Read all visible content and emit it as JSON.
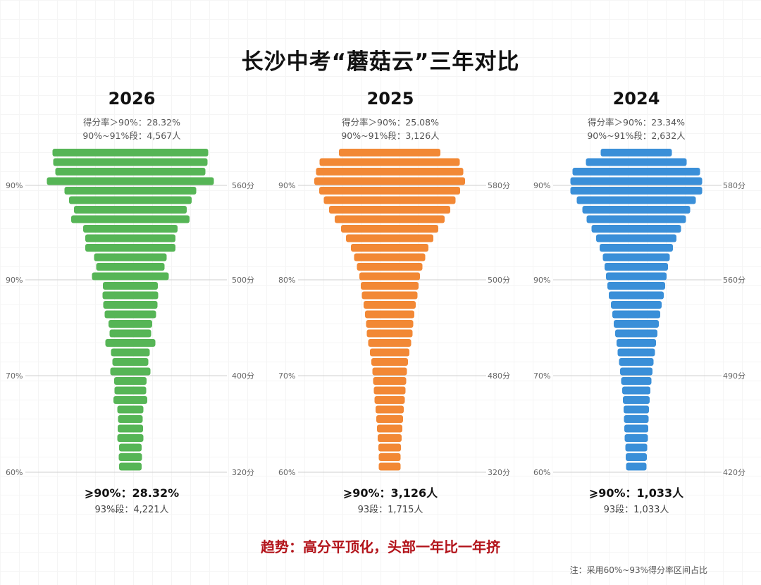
{
  "title": "长沙中考“蘑菇云”三年对比",
  "trend": "趋势：高分平顶化，头部一年比一年挤",
  "note": "注：采用60%~93%得分率区间占比",
  "panels": [
    {
      "year": "2026",
      "sub1": "得分率＞90%：28.32%",
      "sub2": "90%~91%段：4,567人",
      "bottom1": "⩾90%：28.32%",
      "bottom2": "93%段：4,221人"
    },
    {
      "year": "2025",
      "sub1": "得分率＞90%：25.08%",
      "sub2": "90%~91%段：3,126人",
      "bottom1": "⩾90%：3,126人",
      "bottom2": "93段：1,715人"
    },
    {
      "year": "2024",
      "sub1": "得分率＞90%：23.34%",
      "sub2": "90%~91%段：2,632人",
      "bottom1": "⩾90%：1,033人",
      "bottom2": "93段：1,033人"
    }
  ],
  "chart_data": [
    {
      "type": "bar",
      "orientation": "horizontal",
      "title": "2026",
      "color": "#56b556",
      "left_ticks": [
        "90%",
        "90%",
        "70%",
        "60%"
      ],
      "right_ticks": [
        "560分",
        "500分",
        "400分",
        "320分"
      ],
      "values": [
        221,
        219,
        213,
        237,
        187,
        174,
        160,
        168,
        134,
        128,
        128,
        103,
        97,
        109,
        78,
        79,
        77,
        73,
        62,
        59,
        71,
        55,
        51,
        57,
        46,
        45,
        48,
        37,
        35,
        36,
        37,
        32,
        33,
        32
      ]
    },
    {
      "type": "bar",
      "orientation": "horizontal",
      "title": "2025",
      "color": "#f28835",
      "left_ticks": [
        "90%",
        "80%",
        "70%",
        "60%"
      ],
      "right_ticks": [
        "580分",
        "500分",
        "480分",
        "320分"
      ],
      "values": [
        144,
        199,
        209,
        214,
        200,
        187,
        172,
        156,
        138,
        124,
        110,
        101,
        93,
        86,
        82,
        79,
        74,
        70,
        67,
        65,
        61,
        56,
        52,
        49,
        47,
        45,
        43,
        40,
        38,
        36,
        34,
        32,
        31,
        31
      ]
    },
    {
      "type": "bar",
      "orientation": "horizontal",
      "title": "2024",
      "color": "#3a8fd8",
      "left_ticks": [
        "90%",
        "90%",
        "70%",
        "60%"
      ],
      "right_ticks": [
        "580分",
        "560分",
        "490分",
        "420分"
      ],
      "values": [
        101,
        143,
        181,
        187,
        187,
        169,
        153,
        141,
        127,
        114,
        104,
        95,
        90,
        86,
        82,
        78,
        72,
        68,
        64,
        60,
        56,
        53,
        49,
        46,
        43,
        40,
        38,
        36,
        35,
        34,
        33,
        31,
        30,
        29
      ]
    }
  ]
}
